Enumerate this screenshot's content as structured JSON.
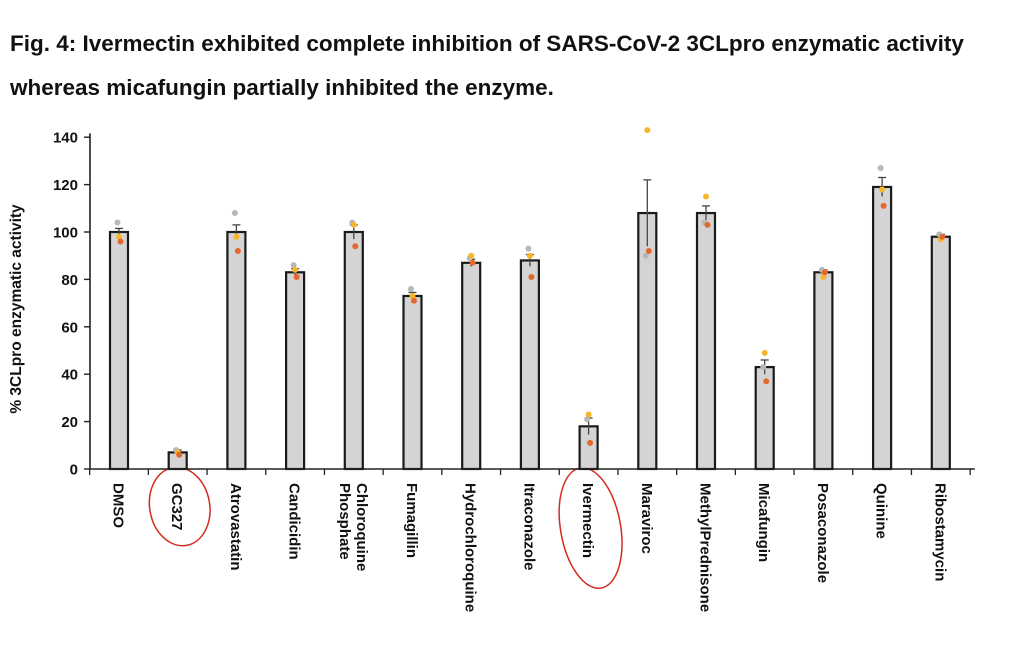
{
  "caption": "Fig. 4: Ivermectin exhibited complete inhibition of SARS-CoV-2 3CLpro enzymatic activity whereas micafungin partially inhibited the enzyme.",
  "chart_data": {
    "type": "bar",
    "title": "",
    "ylabel": "% 3CLpro enzymatic activity",
    "xlabel": "",
    "ylim": [
      0,
      140
    ],
    "yticks": [
      0,
      20,
      40,
      60,
      80,
      100,
      120,
      140
    ],
    "grid": false,
    "categories": [
      "DMSO",
      "GC327",
      "Atrovastatin",
      "Candicidin",
      "Chloroquine Phosphate",
      "Fumagillin",
      "Hydrochloroquine",
      "Itraconazole",
      "Ivermectin",
      "Maraviroc",
      "MethylPrednisone",
      "Micafungin",
      "Posaconazole",
      "Quinine",
      "Ribostamycin"
    ],
    "values": [
      100,
      7,
      100,
      83,
      100,
      73,
      87,
      88,
      18,
      108,
      108,
      43,
      83,
      119,
      98
    ],
    "error": [
      1.5,
      1,
      3,
      1.5,
      3,
      1.5,
      1.5,
      2.5,
      3.5,
      14,
      3,
      3,
      1,
      4,
      1
    ],
    "replicates": [
      [
        104,
        98,
        96
      ],
      [
        8,
        7,
        6
      ],
      [
        108,
        98,
        92
      ],
      [
        86,
        84,
        81
      ],
      [
        104,
        103,
        94
      ],
      [
        76,
        73,
        71
      ],
      [
        89,
        90,
        87
      ],
      [
        93,
        90,
        81
      ],
      [
        21,
        23,
        11
      ],
      [
        90,
        143,
        92
      ],
      [
        104,
        115,
        103
      ],
      [
        43,
        49,
        37
      ],
      [
        84,
        81,
        83
      ],
      [
        127,
        118,
        111
      ],
      [
        99,
        97,
        98
      ]
    ],
    "replicate_colors": [
      "#b8b8b8",
      "#f7b52c",
      "#e4672b"
    ],
    "bar_color": "#d4d4d4",
    "bar_edge": "#1a1a1a",
    "highlighted_categories": [
      "GC327",
      "Ivermectin"
    ],
    "highlight_color": "#d42a1e"
  }
}
